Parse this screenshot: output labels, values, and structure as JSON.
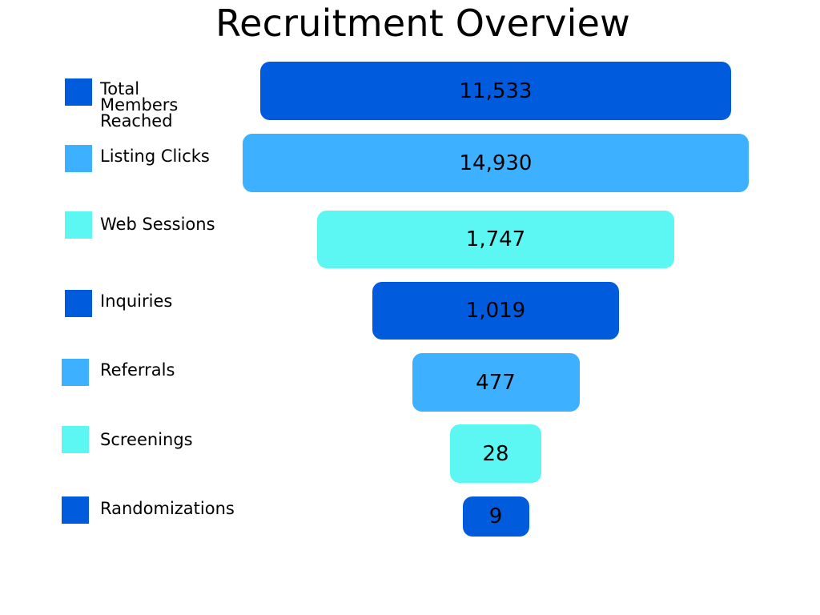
{
  "chart_data": {
    "type": "funnel",
    "title": "Recruitment Overview",
    "categories": [
      "Total\nMembers\nReached",
      "Listing Clicks",
      "Web Sessions",
      "Inquiries",
      "Referrals",
      "Screenings",
      "Randomizations"
    ],
    "values": [
      11533,
      14930,
      1747,
      1019,
      477,
      28,
      9
    ],
    "value_labels": [
      "11,533",
      "14,930",
      "1,747",
      "1,019",
      "477",
      "28",
      "9"
    ],
    "colors": [
      "#005BDD",
      "#3DB1FF",
      "#5CF6F3",
      "#005BDD",
      "#3DB1FF",
      "#5CF6F3",
      "#005BDD"
    ],
    "legend_placement": "left"
  }
}
